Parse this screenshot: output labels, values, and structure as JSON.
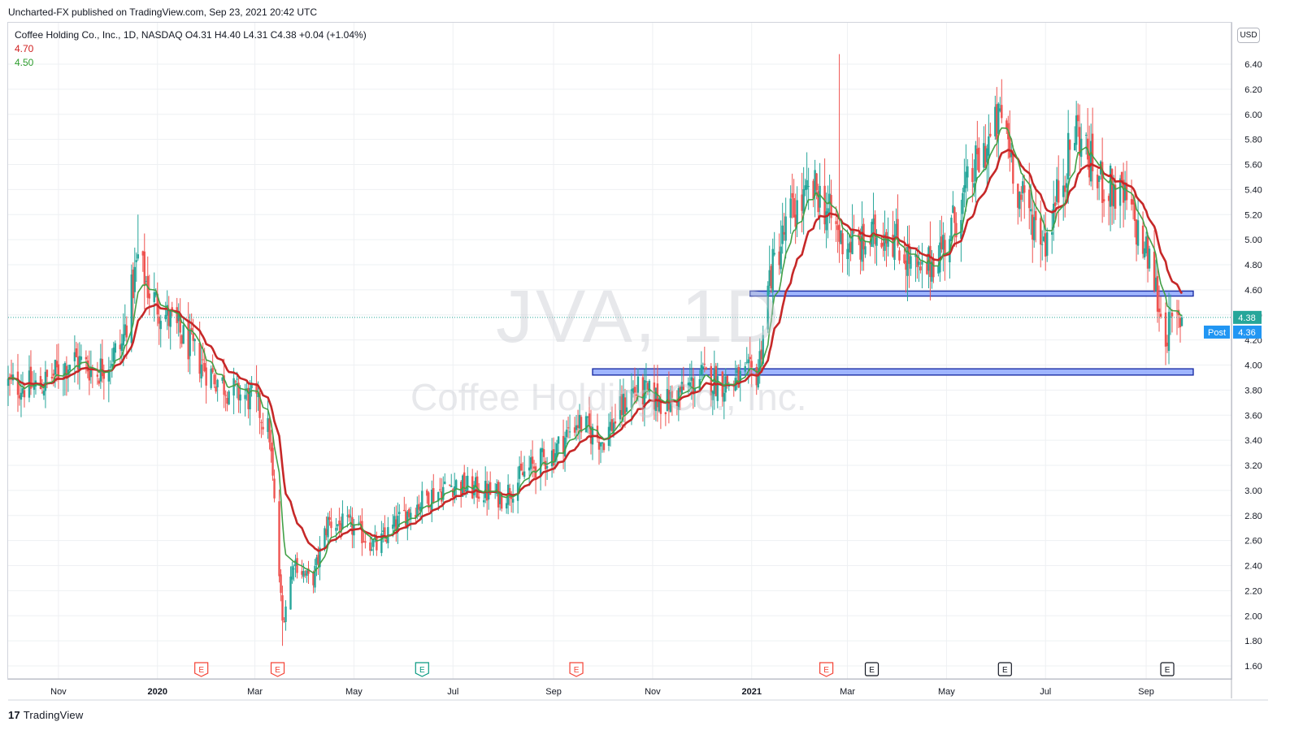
{
  "header": {
    "published_line": "Uncharted-FX published on TradingView.com, Sep 23, 2021 20:42 UTC"
  },
  "legend": {
    "symbol_line": "Coffee Holding Co., Inc., 1D, NASDAQ  O4.31  H4.40  L4.31  C4.38  +0.04 (+1.04%)",
    "ma_red_value": "4.70",
    "ma_green_value": "4.50"
  },
  "watermark": {
    "ticker": "JVA, 1D",
    "company": "Coffee Holding Co., Inc."
  },
  "currency_badge": "USD",
  "price_tags": {
    "last": "4.38",
    "post_label": "Post",
    "post_value": "4.36"
  },
  "footer": {
    "brand_mark": "17",
    "brand": "TradingView"
  },
  "colors": {
    "up": "#26a69a",
    "down": "#ef5350",
    "ma_red": "#c62828",
    "ma_green": "#43a047",
    "zone_fill": "#8ea8ff",
    "zone_stroke": "#1d2fa5",
    "price_tag": "#2196f3"
  },
  "chart_data": {
    "type": "candlestick",
    "symbol": "JVA",
    "exchange": "NASDAQ",
    "timeframe": "1D",
    "ylim": [
      1.5,
      6.6
    ],
    "y_ticks": [
      "1.60",
      "1.80",
      "2.00",
      "2.20",
      "2.40",
      "2.60",
      "2.80",
      "3.00",
      "3.20",
      "3.40",
      "3.60",
      "3.80",
      "4.00",
      "4.20",
      "4.40",
      "4.60",
      "4.80",
      "5.00",
      "5.20",
      "5.40",
      "5.60",
      "5.80",
      "6.00",
      "6.20",
      "6.40"
    ],
    "x_ticks": [
      "Nov",
      "2020",
      "Mar",
      "May",
      "Jul",
      "Sep",
      "Nov",
      "2021",
      "Mar",
      "May",
      "Jul",
      "Sep"
    ],
    "ohlc_last": {
      "open": 4.31,
      "high": 4.4,
      "low": 4.31,
      "close": 4.38,
      "change": 0.04,
      "change_pct": 1.04
    },
    "close_path": [
      {
        "date": "2019-10-01",
        "close": 3.85
      },
      {
        "date": "2019-10-20",
        "close": 3.82
      },
      {
        "date": "2019-11-10",
        "close": 4.05
      },
      {
        "date": "2019-11-25",
        "close": 3.95
      },
      {
        "date": "2019-12-10",
        "close": 4.15
      },
      {
        "date": "2019-12-20",
        "close": 4.85
      },
      {
        "date": "2019-12-28",
        "close": 4.55
      },
      {
        "date": "2020-01-15",
        "close": 4.25
      },
      {
        "date": "2020-02-01",
        "close": 3.95
      },
      {
        "date": "2020-02-15",
        "close": 3.8
      },
      {
        "date": "2020-03-01",
        "close": 3.72
      },
      {
        "date": "2020-03-10",
        "close": 3.45
      },
      {
        "date": "2020-03-18",
        "close": 1.95
      },
      {
        "date": "2020-03-25",
        "close": 2.45
      },
      {
        "date": "2020-04-05",
        "close": 2.25
      },
      {
        "date": "2020-04-15",
        "close": 2.75
      },
      {
        "date": "2020-05-01",
        "close": 2.7
      },
      {
        "date": "2020-05-15",
        "close": 2.55
      },
      {
        "date": "2020-06-01",
        "close": 2.8
      },
      {
        "date": "2020-06-15",
        "close": 2.95
      },
      {
        "date": "2020-07-01",
        "close": 3.05
      },
      {
        "date": "2020-08-01",
        "close": 2.95
      },
      {
        "date": "2020-08-15",
        "close": 3.15
      },
      {
        "date": "2020-09-01",
        "close": 3.3
      },
      {
        "date": "2020-09-15",
        "close": 3.55
      },
      {
        "date": "2020-10-01",
        "close": 3.4
      },
      {
        "date": "2020-10-20",
        "close": 3.8
      },
      {
        "date": "2020-11-10",
        "close": 3.7
      },
      {
        "date": "2020-12-01",
        "close": 3.9
      },
      {
        "date": "2020-12-20",
        "close": 3.85
      },
      {
        "date": "2021-01-05",
        "close": 3.95
      },
      {
        "date": "2021-01-12",
        "close": 4.7
      },
      {
        "date": "2021-01-25",
        "close": 5.2
      },
      {
        "date": "2021-02-10",
        "close": 5.4
      },
      {
        "date": "2021-02-25",
        "close": 5.0
      },
      {
        "date": "2021-03-10",
        "close": 4.95
      },
      {
        "date": "2021-03-25",
        "close": 5.1
      },
      {
        "date": "2021-04-15",
        "close": 4.7
      },
      {
        "date": "2021-05-01",
        "close": 5.0
      },
      {
        "date": "2021-05-20",
        "close": 5.6
      },
      {
        "date": "2021-06-05",
        "close": 6.0
      },
      {
        "date": "2021-06-15",
        "close": 5.35
      },
      {
        "date": "2021-07-01",
        "close": 5.0
      },
      {
        "date": "2021-07-20",
        "close": 5.9
      },
      {
        "date": "2021-08-01",
        "close": 5.5
      },
      {
        "date": "2021-08-20",
        "close": 5.3
      },
      {
        "date": "2021-09-05",
        "close": 4.75
      },
      {
        "date": "2021-09-12",
        "close": 4.25
      },
      {
        "date": "2021-09-23",
        "close": 4.38
      }
    ],
    "key_highs": [
      {
        "date": "2019-12-20",
        "high": 5.2
      },
      {
        "date": "2021-02-24",
        "high": 6.48
      },
      {
        "date": "2021-06-05",
        "high": 6.28
      },
      {
        "date": "2021-07-27",
        "high": 6.05
      }
    ],
    "key_lows": [
      {
        "date": "2020-03-18",
        "low": 1.76
      },
      {
        "date": "2021-09-13",
        "low": 4.1
      }
    ],
    "moving_averages": [
      {
        "color": "red",
        "last_value": 4.7
      },
      {
        "color": "green",
        "last_value": 4.5
      }
    ],
    "zones": [
      {
        "from_date": "2021-01-01",
        "to_date": "2021-09-30",
        "low": 4.55,
        "high": 4.59
      },
      {
        "from_date": "2020-09-25",
        "to_date": "2021-09-30",
        "low": 3.92,
        "high": 3.97
      }
    ],
    "earnings_markers": [
      {
        "date": "2020-01-28",
        "type": "E",
        "color": "red"
      },
      {
        "date": "2020-03-15",
        "type": "E",
        "color": "red"
      },
      {
        "date": "2020-06-12",
        "type": "E",
        "color": "green"
      },
      {
        "date": "2020-09-15",
        "type": "E",
        "color": "red"
      },
      {
        "date": "2021-02-16",
        "type": "E",
        "color": "red"
      },
      {
        "date": "2021-03-16",
        "type": "E",
        "color": "gray"
      },
      {
        "date": "2021-06-06",
        "type": "E",
        "color": "gray"
      },
      {
        "date": "2021-09-14",
        "type": "E",
        "color": "gray"
      }
    ]
  }
}
